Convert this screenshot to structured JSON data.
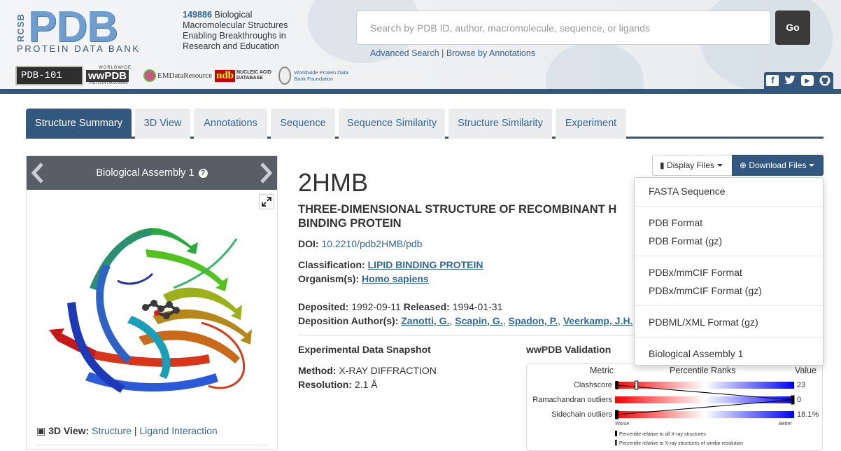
{
  "header": {
    "logo": {
      "rcsb": "RCSB",
      "pdb": "PDB",
      "subtitle": "PROTEIN DATA BANK"
    },
    "tagline": {
      "count": "149886",
      "text": " Biological Macromolecular Structures Enabling Breakthroughs in Research and Education"
    },
    "search": {
      "placeholder": "Search by PDB ID, author, macromolecule, sequence, or ligands",
      "go_label": "Go"
    },
    "advanced_search": "Advanced Search",
    "separator": "|",
    "browse_annotations": "Browse by Annotations",
    "partners": {
      "pdb101": "PDB-101",
      "wwpdb_top": "WORLDWIDE",
      "wwpdb_mark": "wwPDB",
      "wwpdb_bottom": "PROTEIN DATA BANK",
      "emdr": "EMDataResource",
      "ndb_mark": "ndb",
      "ndb_text": "NUCLEIC ACID DATABASE",
      "foundation": "Worldwide Protein Data Bank Foundation"
    },
    "social_icons": [
      "facebook-icon",
      "twitter-icon",
      "youtube-icon",
      "github-icon"
    ]
  },
  "tabs": [
    {
      "label": "Structure Summary",
      "active": true
    },
    {
      "label": "3D View"
    },
    {
      "label": "Annotations"
    },
    {
      "label": "Sequence"
    },
    {
      "label": "Sequence Similarity"
    },
    {
      "label": "Structure Similarity"
    },
    {
      "label": "Experiment"
    }
  ],
  "viewer_panel": {
    "title": "Biological Assembly 1",
    "help": "?",
    "footer_label": "3D View:",
    "footer_link1": "Structure",
    "footer_sep": "|",
    "footer_link2": "Ligand Interaction"
  },
  "entry": {
    "id": "2HMB",
    "title": "THREE-DIMENSIONAL STRUCTURE OF RECOMBINANT H BINDING PROTEIN",
    "doi_label": "DOI:",
    "doi": "10.2210/pdb2HMB/pdb",
    "classification_label": "Classification:",
    "classification": "LIPID BINDING PROTEIN",
    "organism_label": "Organism(s):",
    "organism": "Homo sapiens",
    "deposited_label": "Deposited:",
    "deposited": "1992-09-11",
    "released_label": "Released:",
    "released": "1994-01-31",
    "authors_label": "Deposition Author(s):",
    "authors": [
      "Zanotti, G.",
      "Scapin, G.",
      "Spadon, P.",
      "Veerkamp, J.H."
    ],
    "author_sep": ",",
    "trailing": ","
  },
  "experimental": {
    "heading": "Experimental Data Snapshot",
    "method_label": "Method:",
    "method": "X-RAY DIFFRACTION",
    "resolution_label": "Resolution:",
    "resolution": "2.1 Å"
  },
  "validation": {
    "heading": "wwPDB Validation",
    "col_metric": "Metric",
    "col_percentile": "Percentile Ranks",
    "col_value": "Value",
    "metrics": [
      {
        "name": "Clashscore",
        "value": "23",
        "percentile_all": 0.01,
        "percentile_similar": 0.12
      },
      {
        "name": "Ramachandran outliers",
        "value": "0",
        "percentile_all": 1.0,
        "percentile_similar": 1.0
      },
      {
        "name": "Sidechain outliers",
        "value": "18.1%",
        "percentile_all": 0.01,
        "percentile_similar": 0.01
      }
    ],
    "worse": "Worse",
    "better": "Better",
    "legend_all": "Percentile relative to all X-ray structures",
    "legend_similar": "Percentile relative to X-ray structures of similar resolution"
  },
  "buttons": {
    "display_files": "Display Files",
    "download_files": "Download Files"
  },
  "download_menu": {
    "groups": [
      [
        "FASTA Sequence"
      ],
      [
        "PDB Format",
        "PDB Format (gz)"
      ],
      [
        "PDBx/mmCIF Format",
        "PDBx/mmCIF Format (gz)"
      ],
      [
        "PDBML/XML Format (gz)"
      ],
      [
        "Biological Assembly 1"
      ]
    ]
  },
  "colors": {
    "brand": "#325880",
    "link": "#336699",
    "panel_head": "#575e66",
    "worse": "#ff0000",
    "better": "#0000ff"
  }
}
